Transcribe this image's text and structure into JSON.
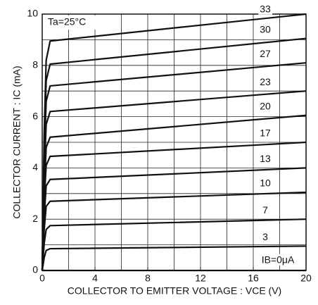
{
  "chart_data": {
    "type": "line",
    "annotation": "Ta=25°C",
    "x_label": "COLLECTOR TO EMITTER VOLTAGE : VCE (V)",
    "y_label": "COLLECTOR CURRENT : IC (mA)",
    "x": [
      0,
      0.15,
      0.3,
      0.6,
      20
    ],
    "series": [
      {
        "name": "IB=0μA",
        "color": "#111111",
        "values": [
          0,
          0,
          0,
          0,
          0
        ]
      },
      {
        "name": "3",
        "color": "#111111",
        "values": [
          0,
          0.5,
          0.78,
          0.85,
          0.95
        ]
      },
      {
        "name": "7",
        "color": "#111111",
        "values": [
          0,
          1.05,
          1.6,
          1.75,
          2.0
        ]
      },
      {
        "name": "10",
        "color": "#111111",
        "values": [
          0,
          1.6,
          2.5,
          2.7,
          3.05
        ]
      },
      {
        "name": "13",
        "color": "#111111",
        "values": [
          0,
          2.1,
          3.3,
          3.55,
          4.0
        ]
      },
      {
        "name": "17",
        "color": "#111111",
        "values": [
          0,
          2.7,
          4.1,
          4.45,
          5.0
        ]
      },
      {
        "name": "20",
        "color": "#111111",
        "values": [
          0,
          3.1,
          4.8,
          5.2,
          6.05
        ]
      },
      {
        "name": "23",
        "color": "#111111",
        "values": [
          0,
          3.7,
          5.7,
          6.2,
          7.0
        ]
      },
      {
        "name": "27",
        "color": "#111111",
        "values": [
          0,
          4.3,
          6.6,
          7.2,
          8.1
        ]
      },
      {
        "name": "30",
        "color": "#111111",
        "values": [
          0,
          4.8,
          7.4,
          8.05,
          9.05
        ]
      },
      {
        "name": "33",
        "color": "#111111",
        "values": [
          0,
          5.4,
          8.2,
          8.95,
          10.0
        ]
      }
    ],
    "xlim": [
      0,
      20
    ],
    "ylim": [
      0,
      10
    ],
    "xticks": [
      0,
      4,
      8,
      12,
      16,
      20
    ],
    "yticks": [
      0,
      2,
      4,
      6,
      8,
      10
    ],
    "xgrid": [
      2,
      4,
      6,
      8,
      10,
      12,
      14,
      16,
      18
    ],
    "ygrid": [
      1,
      2,
      3,
      4,
      5,
      6,
      7,
      8,
      9
    ],
    "grid": true
  }
}
